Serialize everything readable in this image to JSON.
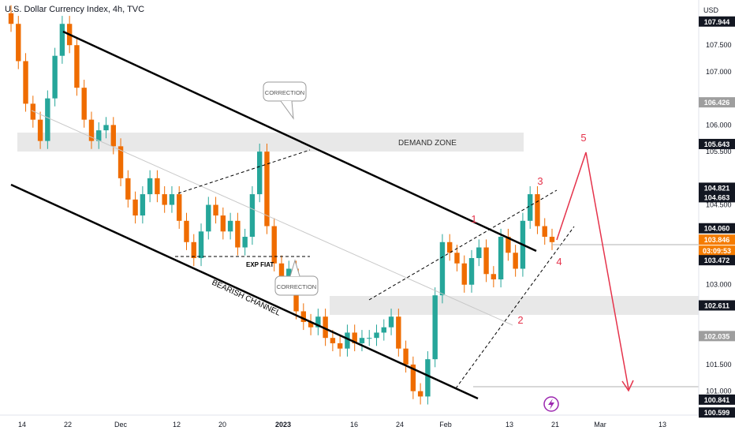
{
  "header": {
    "title": "U.S. Dollar Currency Index, 4h, TVC",
    "currency": "USD"
  },
  "chart_data": {
    "type": "candlestick",
    "symbol": "U.S. Dollar Currency Index",
    "interval": "4h",
    "source": "TVC",
    "x_tick_labels": [
      "14",
      "22",
      "Dec",
      "12",
      "20",
      "2023",
      "16",
      "24",
      "Feb",
      "13",
      "21",
      "Mar",
      "13"
    ],
    "y_tick_labels": [
      "107.500",
      "107.000",
      "106.000",
      "105.500",
      "104.500",
      "103.000",
      "101.500",
      "101.000"
    ],
    "ylim": [
      100.55,
      108.2
    ],
    "price_labels": [
      {
        "value": "107.944",
        "style": "dark"
      },
      {
        "value": "106.426",
        "style": "gray"
      },
      {
        "value": "105.643",
        "style": "dark"
      },
      {
        "value": "104.821",
        "style": "dark"
      },
      {
        "value": "104.663",
        "style": "dark"
      },
      {
        "value": "104.060",
        "style": "dark"
      },
      {
        "value": "103.846",
        "style": "orange"
      },
      {
        "value": "03:09:53",
        "style": "orange"
      },
      {
        "value": "103.472",
        "style": "dark"
      },
      {
        "value": "102.611",
        "style": "dark"
      },
      {
        "value": "102.035",
        "style": "gray"
      },
      {
        "value": "100.841",
        "style": "dark"
      },
      {
        "value": "100.599",
        "style": "dark"
      }
    ],
    "close_series": [
      107.9,
      107.2,
      106.4,
      106.1,
      105.7,
      106.5,
      107.3,
      107.9,
      107.5,
      106.7,
      106.1,
      105.7,
      105.9,
      106.0,
      105.6,
      105.0,
      104.6,
      104.3,
      104.7,
      105.0,
      104.7,
      104.5,
      104.7,
      104.2,
      103.8,
      103.5,
      104.0,
      104.5,
      104.3,
      104.0,
      104.2,
      103.7,
      103.9,
      104.7,
      105.5,
      104.1,
      103.4,
      103.1,
      103.3,
      102.5,
      102.3,
      102.2,
      102.4,
      102.0,
      101.9,
      101.8,
      102.1,
      101.9,
      102.0,
      102.0,
      102.1,
      102.2,
      102.4,
      101.8,
      101.5,
      101.0,
      100.9,
      101.6,
      102.8,
      103.8,
      103.6,
      103.4,
      103.0,
      103.5,
      103.7,
      103.2,
      103.1,
      103.9,
      103.6,
      103.3,
      104.2,
      104.7,
      104.1,
      103.9,
      103.8
    ],
    "annotations": {
      "zones": [
        "DEMAND ZONE"
      ],
      "callouts": [
        "CORRECTION",
        "CORRECTION"
      ],
      "channel_label": "BEARISH CHANNEL",
      "level_label": "EXP FIAT",
      "wave_labels": [
        "1",
        "2",
        "3",
        "4",
        "5"
      ]
    },
    "colors": {
      "up": "#26a69a",
      "down": "#ef6c00",
      "wave": "#e5334b",
      "current": "#f57c00",
      "dark_label": "#131722",
      "zone": "#e0e0e0"
    }
  }
}
